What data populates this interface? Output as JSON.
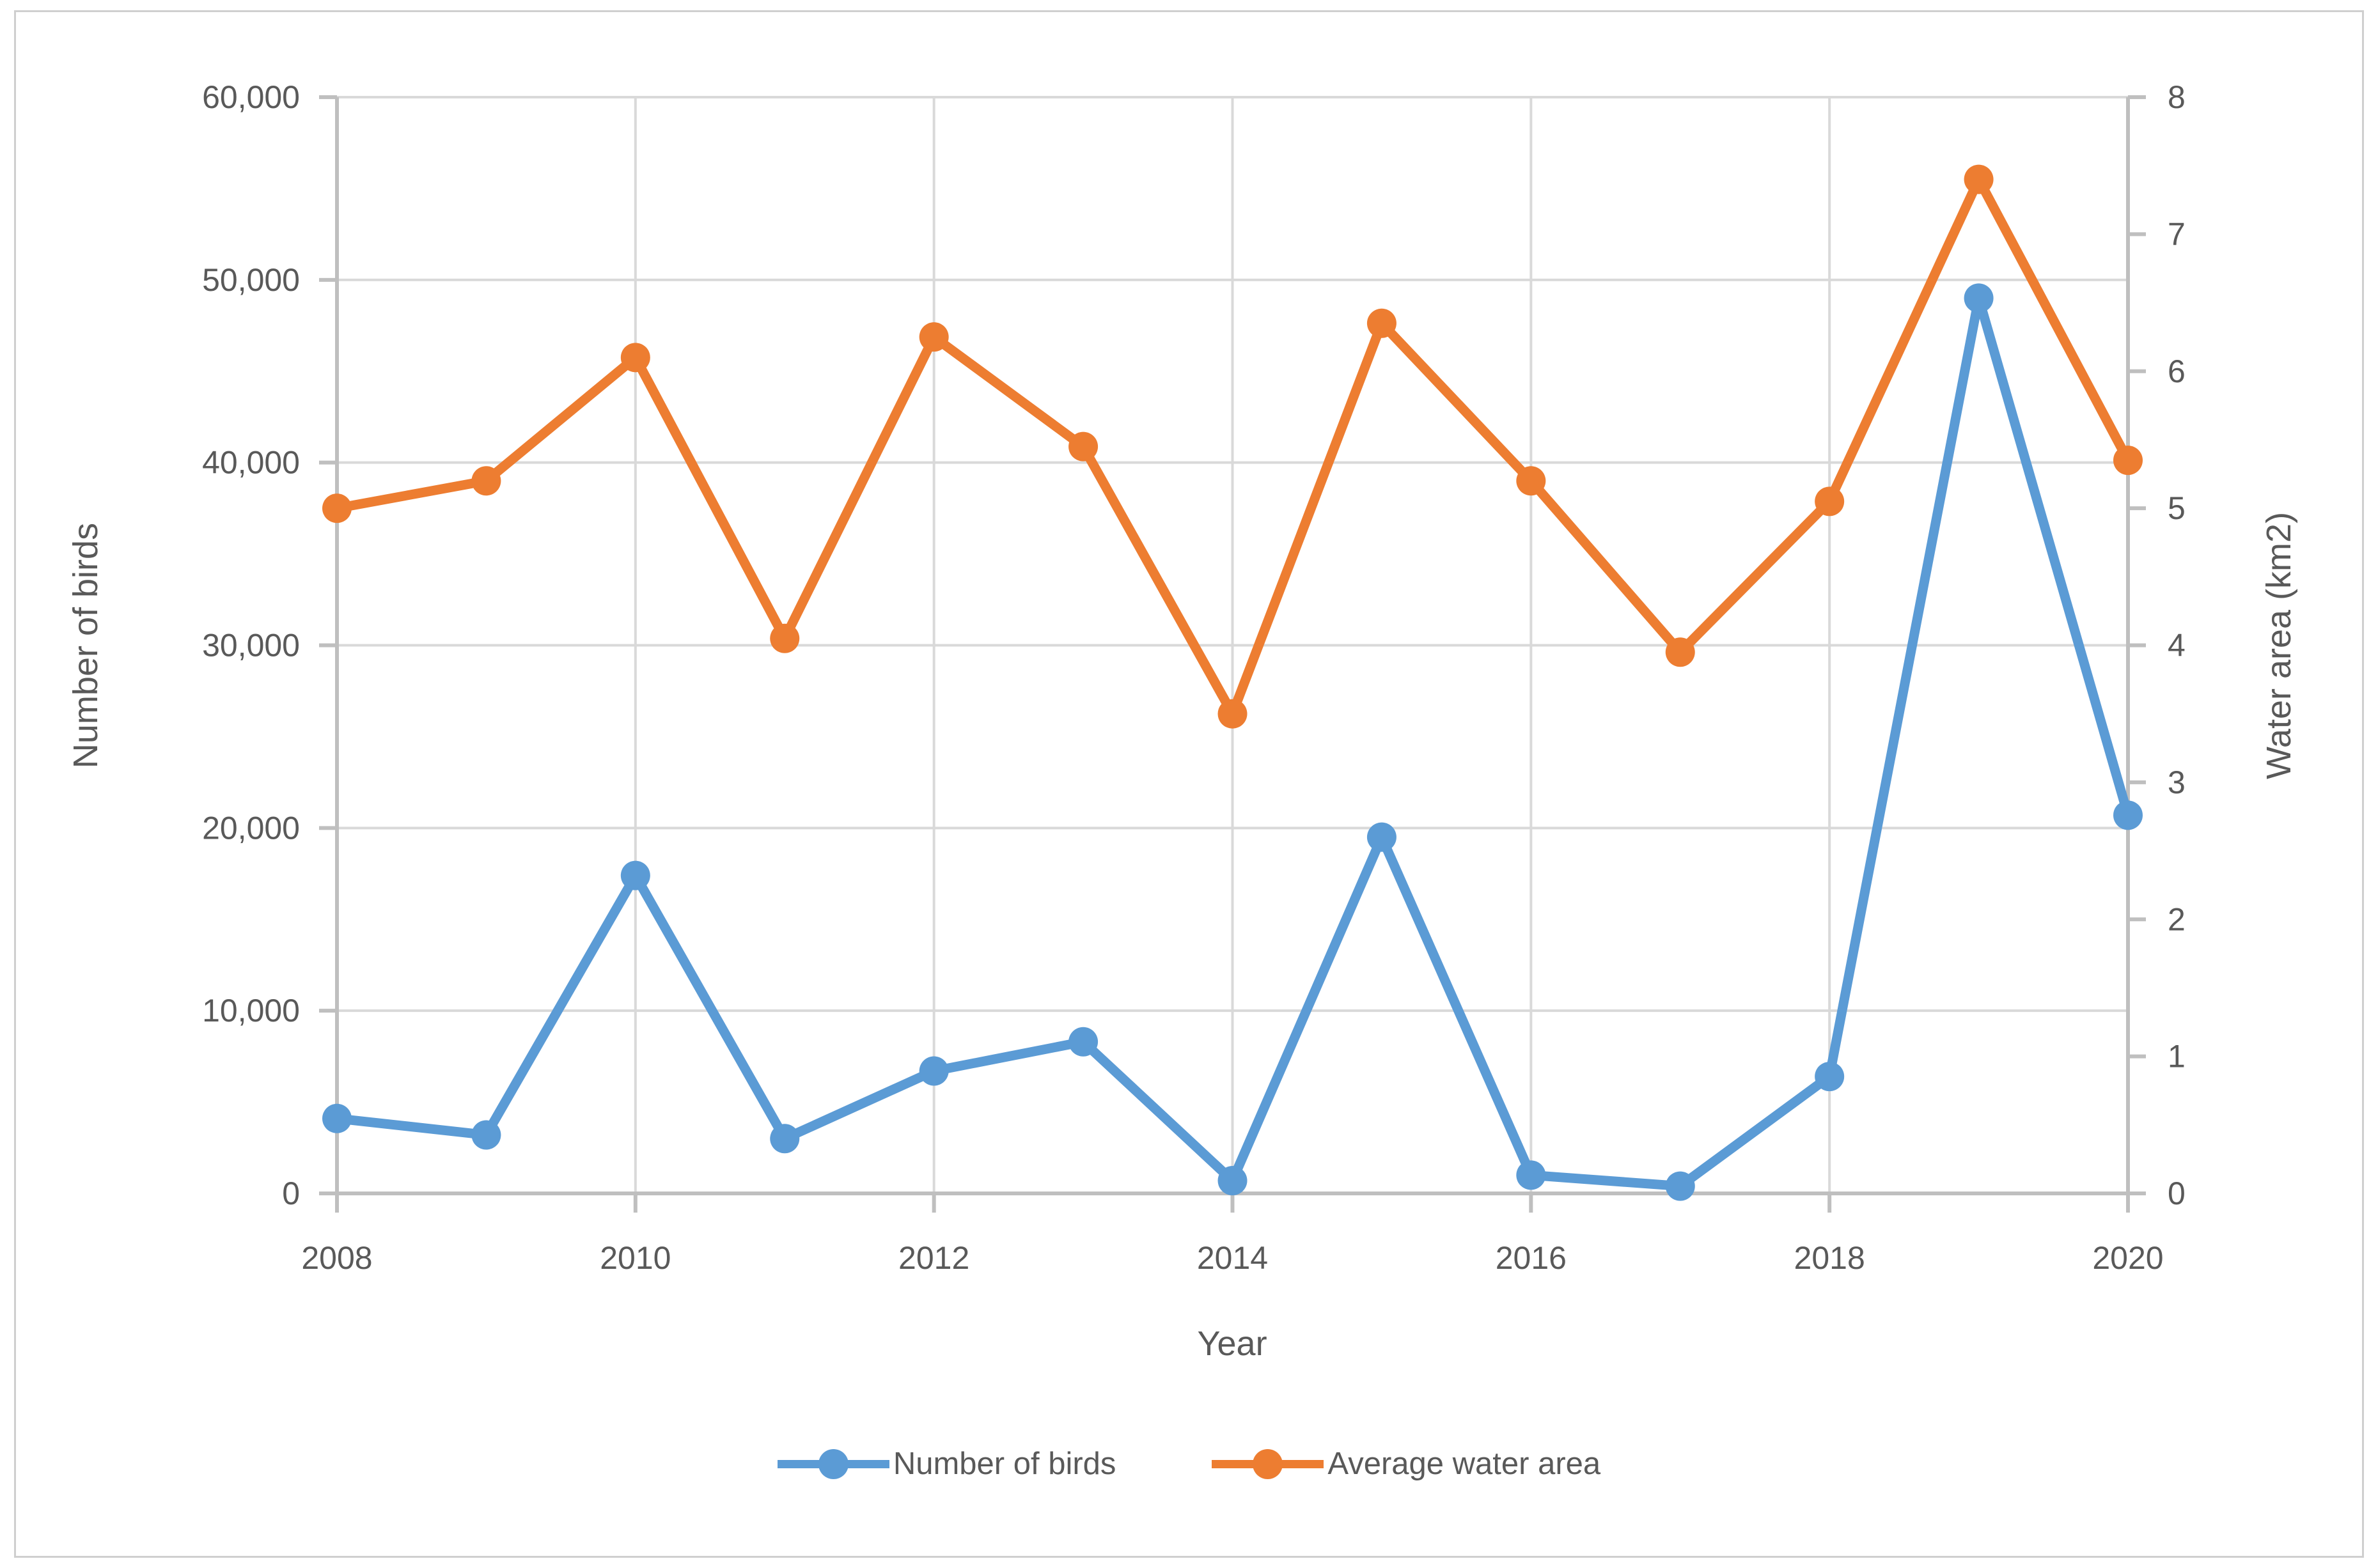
{
  "chart_data": {
    "type": "line",
    "title": "",
    "xlabel": "Year",
    "x": [
      2008,
      2009,
      2010,
      2011,
      2012,
      2013,
      2014,
      2015,
      2016,
      2017,
      2018,
      2019,
      2020
    ],
    "x_tick_labels": [
      "2008",
      "2010",
      "2012",
      "2014",
      "2016",
      "2018",
      "2020"
    ],
    "left_axis": {
      "title": "Number of birds",
      "min": 0,
      "max": 60000,
      "tick_labels": [
        "0",
        "10,000",
        "20,000",
        "30,000",
        "40,000",
        "50,000",
        "60,000"
      ]
    },
    "right_axis": {
      "title": "Water area (km2)",
      "min": 0,
      "max": 8,
      "tick_labels": [
        "0",
        "1",
        "2",
        "3",
        "4",
        "5",
        "6",
        "7",
        "8"
      ]
    },
    "series": [
      {
        "name": "Number of birds",
        "axis": "left",
        "color": "#5B9BD5",
        "values": [
          4100,
          3200,
          17400,
          3000,
          6700,
          8300,
          700,
          19500,
          1000,
          400,
          6400,
          49000,
          20700
        ]
      },
      {
        "name": "Average water area",
        "axis": "right",
        "color": "#ED7D31",
        "values": [
          5.0,
          5.2,
          6.1,
          4.05,
          6.25,
          5.45,
          3.5,
          6.35,
          5.2,
          3.95,
          5.05,
          7.4,
          5.35
        ]
      }
    ],
    "grid": true,
    "legend_position": "bottom"
  },
  "colors": {
    "gridline": "#D9D9D9",
    "axis_line": "#BFBFBF",
    "text": "#595959",
    "background": "#FFFFFF",
    "border": "#CFCFCF"
  }
}
